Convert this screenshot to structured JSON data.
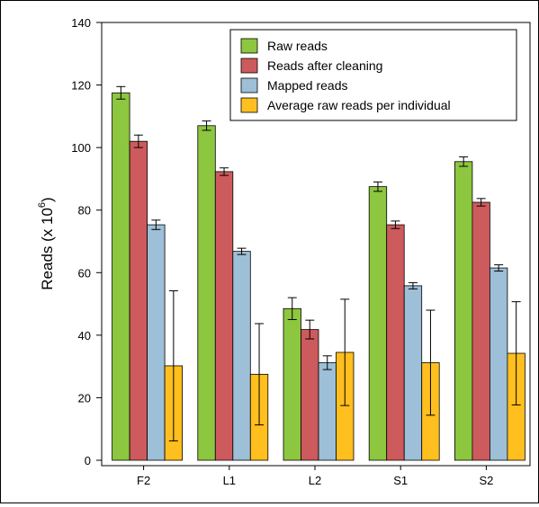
{
  "chart_data": {
    "type": "bar",
    "title": "",
    "xlabel": "",
    "ylabel": "Reads (x 10",
    "ylabel_sup": "6",
    "ylabel_suffix": ")",
    "ylim": [
      0,
      140
    ],
    "yticks": [
      0,
      20,
      40,
      60,
      80,
      100,
      120,
      140
    ],
    "grid": false,
    "legend_position": "top-right",
    "categories": [
      "F2",
      "L1",
      "L2",
      "S1",
      "S2"
    ],
    "series": [
      {
        "name": "Raw reads",
        "color": "#8dc63f",
        "values": [
          117.5,
          107.0,
          48.5,
          87.5,
          95.5
        ],
        "errors": [
          2.0,
          1.5,
          3.5,
          1.5,
          1.5
        ]
      },
      {
        "name": "Reads after cleaning",
        "color": "#cd5a5c",
        "values": [
          102.0,
          92.3,
          41.8,
          75.3,
          82.5
        ],
        "errors": [
          2.0,
          1.2,
          3.0,
          1.2,
          1.2
        ]
      },
      {
        "name": "Mapped reads",
        "color": "#9dbfd7",
        "values": [
          75.3,
          66.8,
          31.2,
          55.8,
          61.5
        ],
        "errors": [
          1.5,
          1.0,
          2.2,
          1.0,
          1.0
        ]
      },
      {
        "name": "Average raw reads per individual",
        "color": "#ffbf1f",
        "values": [
          30.2,
          27.5,
          34.5,
          31.2,
          34.2
        ],
        "errors": [
          24.0,
          16.2,
          17.0,
          16.8,
          16.5
        ]
      }
    ]
  }
}
